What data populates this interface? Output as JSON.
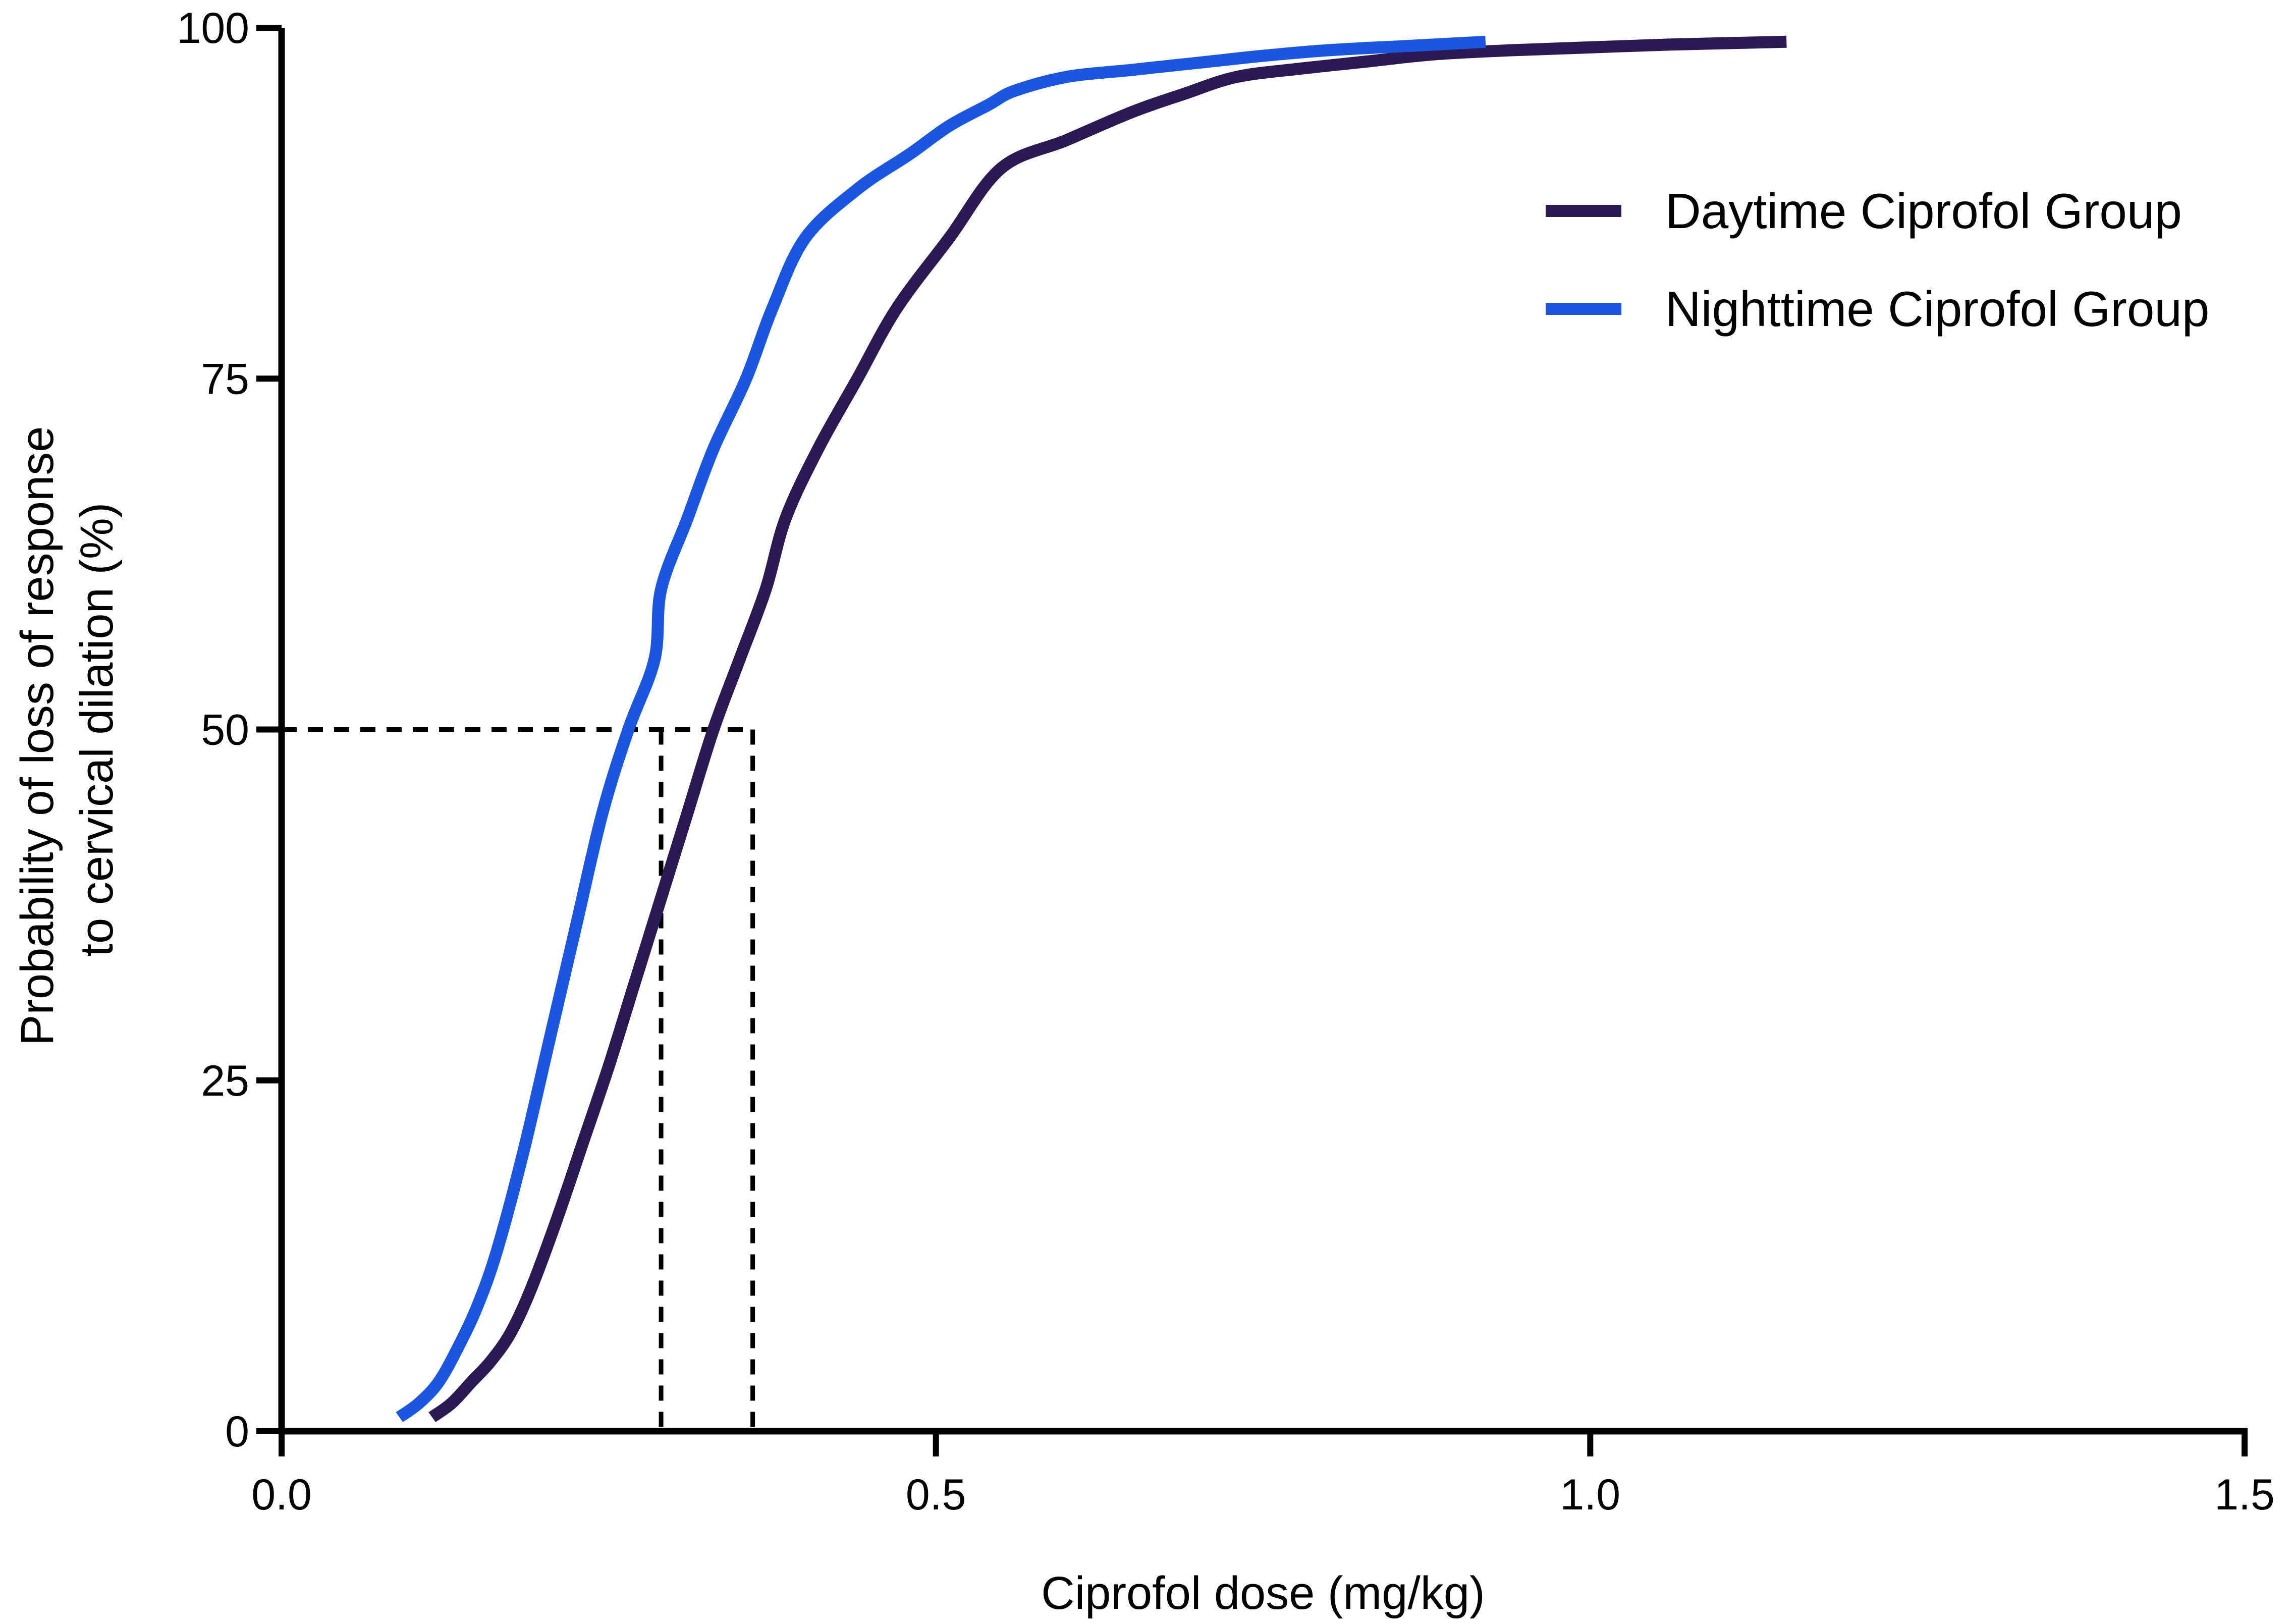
{
  "chart_data": {
    "type": "line",
    "title": "",
    "xlabel": "Ciprofol dose (mg/kg)",
    "ylabel_lines": [
      "Probability of loss of response",
      "to cervical dilation (%)"
    ],
    "xlim": [
      0,
      1.5
    ],
    "ylim": [
      0,
      100
    ],
    "x_ticks": [
      0,
      0.5,
      1.0,
      1.5
    ],
    "x_tick_labels": [
      "0.0",
      "0.5",
      "1.0",
      "1.5"
    ],
    "y_ticks": [
      0,
      25,
      50,
      75,
      100
    ],
    "y_tick_labels": [
      "0",
      "25",
      "50",
      "75",
      "100"
    ],
    "grid": false,
    "legend_position": "top-right",
    "series": [
      {
        "name": "Daytime Ciprofol Group",
        "color": "#2b1a52",
        "x": [
          0.115,
          0.13,
          0.145,
          0.16,
          0.175,
          0.19,
          0.21,
          0.23,
          0.25,
          0.27,
          0.29,
          0.31,
          0.33,
          0.35,
          0.37,
          0.385,
          0.41,
          0.44,
          0.47,
          0.51,
          0.55,
          0.6,
          0.65,
          0.69,
          0.73,
          0.78,
          0.83,
          0.88,
          0.94,
          1.0,
          1.06,
          1.15
        ],
        "y": [
          1,
          2,
          3.5,
          5,
          7,
          10,
          15,
          20.5,
          26,
          32,
          38,
          44,
          50,
          55,
          60,
          65,
          70,
          75,
          80,
          85,
          90,
          92,
          94,
          95.3,
          96.5,
          97.1,
          97.6,
          98.1,
          98.4,
          98.6,
          98.8,
          99
        ]
      },
      {
        "name": "Nighttime Ciprofol Group",
        "color": "#1a56e0",
        "x": [
          0.09,
          0.105,
          0.12,
          0.135,
          0.15,
          0.165,
          0.185,
          0.205,
          0.225,
          0.245,
          0.265,
          0.285,
          0.29,
          0.31,
          0.33,
          0.355,
          0.375,
          0.4,
          0.44,
          0.48,
          0.51,
          0.54,
          0.56,
          0.6,
          0.65,
          0.7,
          0.75,
          0.8,
          0.86,
          0.92
        ],
        "y": [
          1,
          2,
          3.5,
          6,
          9,
          13,
          20,
          28,
          36,
          44,
          50,
          55,
          60,
          65,
          70,
          75,
          80,
          85,
          88.5,
          91,
          93,
          94.5,
          95.5,
          96.5,
          97,
          97.5,
          98,
          98.4,
          98.7,
          99
        ]
      }
    ],
    "annotations": [
      {
        "kind": "reference-lines",
        "style": "dashed",
        "y": 50,
        "x_values": [
          0.29,
          0.36
        ]
      }
    ]
  }
}
